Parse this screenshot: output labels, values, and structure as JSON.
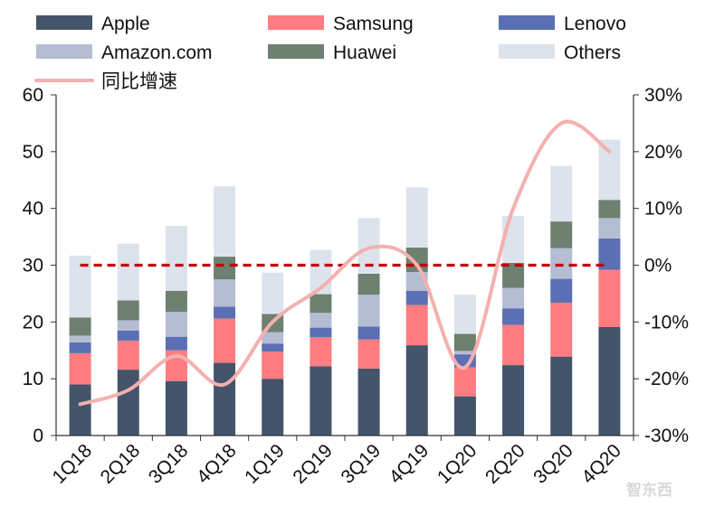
{
  "chart_data": {
    "type": "bar",
    "stacked": true,
    "categories": [
      "1Q18",
      "2Q18",
      "3Q18",
      "4Q18",
      "1Q19",
      "2Q19",
      "3Q19",
      "4Q19",
      "1Q20",
      "2Q20",
      "3Q20",
      "4Q20"
    ],
    "series": [
      {
        "name": "Apple",
        "color": "#44546a",
        "values": [
          9.0,
          11.6,
          9.6,
          12.8,
          10.0,
          12.2,
          11.8,
          15.9,
          6.9,
          12.4,
          13.9,
          19.1
        ]
      },
      {
        "name": "Samsung",
        "color": "#ff7c80",
        "values": [
          5.5,
          5.1,
          5.4,
          7.8,
          4.8,
          5.1,
          5.1,
          7.1,
          5.1,
          7.1,
          9.5,
          10.1
        ]
      },
      {
        "name": "Lenovo",
        "color": "#5b6fb5",
        "values": [
          1.9,
          1.8,
          2.4,
          2.1,
          1.4,
          1.7,
          2.3,
          2.5,
          2.3,
          2.9,
          4.2,
          5.5
        ]
      },
      {
        "name": "Amazon.com",
        "color": "#b4bdd1",
        "values": [
          1.2,
          1.8,
          4.4,
          4.8,
          2.0,
          2.6,
          5.6,
          3.3,
          0.6,
          3.6,
          5.4,
          3.6
        ]
      },
      {
        "name": "Huawei",
        "color": "#6e8070",
        "values": [
          3.2,
          3.5,
          3.7,
          4.0,
          3.2,
          3.3,
          3.7,
          4.3,
          3.0,
          4.4,
          4.7,
          3.2
        ]
      },
      {
        "name": "Others",
        "color": "#dde3ec",
        "values": [
          10.9,
          10.0,
          11.4,
          12.4,
          7.3,
          7.8,
          9.8,
          10.6,
          6.9,
          8.3,
          9.8,
          10.6
        ]
      }
    ],
    "growth_series": {
      "name": "同比增速",
      "color": "#f4b0b0",
      "values": [
        -24.5,
        -22.0,
        -16.0,
        -21.0,
        -10.0,
        -4.0,
        3.0,
        0.0,
        -18.0,
        10.0,
        25.0,
        20.0
      ]
    },
    "reference_line": {
      "value": 0,
      "color": "#c00000",
      "style": "dashed"
    },
    "y_left": {
      "lim": [
        0,
        60
      ],
      "ticks": [
        "0",
        "10",
        "20",
        "30",
        "40",
        "50",
        "60"
      ]
    },
    "y_right": {
      "lim": [
        -30,
        30
      ],
      "ticks": [
        "-30%",
        "-20%",
        "-10%",
        "0%",
        "10%",
        "20%",
        "30%"
      ]
    },
    "legend": {
      "placement": "top",
      "order": [
        "Apple",
        "Samsung",
        "Lenovo",
        "Amazon.com",
        "Huawei",
        "Others",
        "同比增速"
      ]
    },
    "title": "",
    "xlabel": "",
    "ylabel": "",
    "grid": false
  },
  "watermark": "智东西"
}
